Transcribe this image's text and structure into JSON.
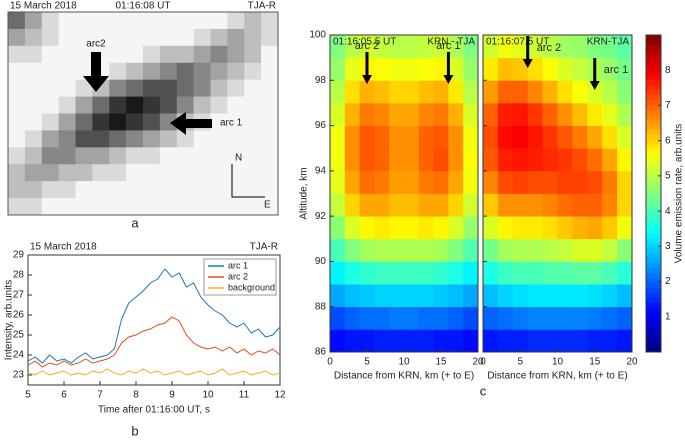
{
  "chart_data": [
    {
      "type": "image",
      "date": "15 March 2018",
      "time": "01:16:08 UT",
      "station": "TJA-R",
      "labels": [
        "arc2",
        "arc 1",
        "N",
        "E"
      ],
      "panel_label": "a",
      "pixels": [
        [
          5,
          3,
          1,
          0,
          0,
          0,
          0,
          0,
          0,
          0,
          0,
          0,
          0,
          1,
          2,
          1
        ],
        [
          3,
          2,
          1,
          0,
          0,
          0,
          0,
          0,
          0,
          0,
          0,
          1,
          2,
          3,
          2,
          1
        ],
        [
          1,
          1,
          0,
          0,
          0,
          0,
          0,
          0,
          1,
          2,
          2,
          3,
          4,
          3,
          2,
          0
        ],
        [
          0,
          0,
          0,
          0,
          0,
          0,
          1,
          2,
          3,
          4,
          5,
          4,
          3,
          2,
          1,
          0
        ],
        [
          0,
          0,
          0,
          0,
          1,
          2,
          4,
          5,
          6,
          6,
          5,
          4,
          2,
          1,
          0,
          0
        ],
        [
          0,
          0,
          0,
          1,
          3,
          5,
          7,
          8,
          7,
          6,
          4,
          2,
          1,
          0,
          0,
          0
        ],
        [
          0,
          0,
          1,
          3,
          5,
          7,
          8,
          7,
          6,
          4,
          2,
          1,
          0,
          0,
          0,
          0
        ],
        [
          0,
          1,
          3,
          4,
          6,
          6,
          5,
          4,
          3,
          2,
          1,
          0,
          0,
          0,
          0,
          0
        ],
        [
          1,
          2,
          4,
          4,
          3,
          3,
          2,
          1,
          1,
          0,
          0,
          0,
          0,
          0,
          0,
          0
        ],
        [
          2,
          3,
          3,
          2,
          2,
          1,
          1,
          0,
          0,
          0,
          0,
          0,
          0,
          0,
          0,
          0
        ],
        [
          2,
          2,
          1,
          1,
          0,
          0,
          0,
          0,
          0,
          0,
          0,
          0,
          0,
          0,
          0,
          0
        ],
        [
          1,
          1,
          0,
          0,
          0,
          0,
          0,
          0,
          0,
          0,
          0,
          0,
          0,
          0,
          0,
          0
        ]
      ]
    },
    {
      "type": "line",
      "date": "15 March 2018",
      "station": "TJA-R",
      "xlabel": "Time after 01:16:00 UT, s",
      "ylabel": "Intensity, arb.units",
      "panel_label": "b",
      "xlim": [
        5,
        12
      ],
      "xticks": [
        5,
        6,
        7,
        8,
        9,
        10,
        11,
        12
      ],
      "ylim": [
        22.5,
        29
      ],
      "yticks": [
        23,
        24,
        25,
        26,
        27,
        28,
        29
      ],
      "legend": "upper right",
      "x": [
        5.0,
        5.2,
        5.4,
        5.6,
        5.8,
        6.0,
        6.2,
        6.4,
        6.6,
        6.8,
        7.0,
        7.2,
        7.4,
        7.6,
        7.8,
        8.0,
        8.2,
        8.4,
        8.6,
        8.8,
        9.0,
        9.2,
        9.4,
        9.6,
        9.8,
        10.0,
        10.2,
        10.4,
        10.6,
        10.8,
        11.0,
        11.2,
        11.4,
        11.6,
        11.8,
        12.0
      ],
      "series": [
        {
          "name": "arc 1",
          "color": "#1f77b4",
          "values": [
            23.7,
            23.9,
            23.6,
            24.0,
            23.7,
            23.8,
            23.6,
            23.9,
            24.1,
            23.8,
            23.9,
            24.0,
            24.3,
            25.8,
            26.6,
            26.9,
            27.2,
            27.6,
            27.8,
            28.3,
            27.9,
            28.1,
            27.4,
            27.6,
            26.9,
            26.5,
            26.2,
            26.0,
            25.6,
            25.4,
            25.6,
            25.1,
            25.3,
            24.9,
            25.0,
            25.4
          ]
        },
        {
          "name": "arc 2",
          "color": "#d95319",
          "values": [
            23.5,
            23.7,
            23.4,
            23.6,
            23.5,
            23.7,
            23.5,
            23.6,
            23.8,
            23.6,
            23.7,
            23.8,
            24.0,
            24.6,
            24.9,
            25.0,
            25.2,
            25.3,
            25.5,
            25.6,
            25.9,
            25.7,
            25.0,
            24.6,
            24.4,
            24.3,
            24.4,
            24.2,
            24.4,
            24.1,
            24.3,
            24.0,
            24.2,
            24.1,
            24.3,
            24.0
          ]
        },
        {
          "name": "background",
          "color": "#edb120",
          "values": [
            23.1,
            23.0,
            23.2,
            23.0,
            23.1,
            23.2,
            23.0,
            23.1,
            23.0,
            23.2,
            23.1,
            23.3,
            23.1,
            23.0,
            23.2,
            23.1,
            23.3,
            23.1,
            23.2,
            23.0,
            23.1,
            23.2,
            23.0,
            23.1,
            23.2,
            23.0,
            23.1,
            23.3,
            23.0,
            23.1,
            23.2,
            23.0,
            23.1,
            23.2,
            23.0,
            23.1
          ]
        }
      ]
    },
    {
      "type": "heatmap",
      "ylabel": "Altitude, km",
      "panel_label": "c",
      "xlim": [
        0,
        20
      ],
      "xticks": [
        0,
        5,
        10,
        15,
        20
      ],
      "ylim": [
        86,
        100
      ],
      "yticks": [
        86,
        88,
        90,
        92,
        94,
        96,
        98,
        100
      ],
      "x_edges": [
        0,
        2,
        4,
        6,
        8,
        10,
        12,
        14,
        16,
        18,
        20
      ],
      "y_edges": [
        86,
        87,
        88,
        89,
        90,
        91,
        92,
        93,
        94,
        95,
        96,
        97,
        98,
        99,
        100
      ],
      "colorbar": {
        "label": "Volume emission rate, arb.units",
        "lim": [
          0,
          9
        ],
        "ticks": [
          1,
          2,
          3,
          4,
          5,
          6,
          7,
          8
        ],
        "colormap": "jet"
      },
      "panels": [
        {
          "time": "01:16:05.5 UT",
          "station": "KRN - TJA",
          "xlabel": "Distance from KRN, km (+ to E)",
          "arrows": [
            {
              "label": "arc 2",
              "x": 5
            },
            {
              "label": "arc 1",
              "x": 16
            }
          ],
          "values": [
            [
              1.2,
              1.3,
              1.3,
              1.4,
              1.4,
              1.4,
              1.4,
              1.3,
              1.3,
              1.2
            ],
            [
              1.8,
              2.0,
              2.1,
              2.1,
              2.2,
              2.2,
              2.1,
              2.1,
              2.0,
              1.8
            ],
            [
              2.6,
              2.8,
              2.9,
              3.0,
              3.0,
              3.0,
              3.0,
              2.9,
              2.8,
              2.6
            ],
            [
              3.3,
              3.6,
              3.8,
              3.9,
              3.9,
              3.9,
              3.9,
              3.8,
              3.6,
              3.3
            ],
            [
              4.0,
              4.5,
              4.8,
              4.9,
              4.9,
              4.9,
              4.9,
              4.8,
              4.5,
              4.1
            ],
            [
              4.6,
              5.3,
              5.7,
              5.8,
              5.7,
              5.7,
              5.8,
              5.7,
              5.3,
              4.7
            ],
            [
              5.1,
              6.0,
              6.4,
              6.4,
              6.2,
              6.2,
              6.4,
              6.4,
              6.0,
              5.2
            ],
            [
              5.4,
              6.4,
              6.9,
              6.8,
              6.5,
              6.5,
              6.8,
              6.9,
              6.4,
              5.5
            ],
            [
              5.5,
              6.6,
              7.1,
              7.0,
              6.6,
              6.6,
              7.0,
              7.2,
              6.6,
              5.6
            ],
            [
              5.5,
              6.6,
              7.1,
              7.0,
              6.6,
              6.6,
              7.0,
              7.1,
              6.6,
              5.5
            ],
            [
              5.3,
              6.3,
              6.8,
              6.7,
              6.4,
              6.4,
              6.7,
              6.8,
              6.3,
              5.3
            ],
            [
              5.0,
              5.9,
              6.3,
              6.2,
              6.0,
              6.0,
              6.2,
              6.3,
              5.8,
              5.0
            ],
            [
              4.7,
              5.4,
              5.7,
              5.6,
              5.5,
              5.5,
              5.6,
              5.7,
              5.3,
              4.7
            ],
            [
              4.5,
              5.0,
              5.2,
              5.1,
              5.0,
              5.0,
              5.1,
              5.2,
              4.9,
              4.5
            ]
          ]
        },
        {
          "time": "01:16:07.5 UT",
          "station": "KRN-TJA",
          "xlabel": "Distance from KRN, km (+ to E)",
          "arrows": [
            {
              "label": "arc 2",
              "x": 6
            },
            {
              "label": "arc 1",
              "x": 15
            }
          ],
          "values": [
            [
              1.3,
              1.4,
              1.4,
              1.5,
              1.5,
              1.5,
              1.5,
              1.4,
              1.4,
              1.3
            ],
            [
              2.0,
              2.1,
              2.2,
              2.3,
              2.3,
              2.3,
              2.3,
              2.2,
              2.1,
              2.0
            ],
            [
              2.8,
              3.0,
              3.1,
              3.2,
              3.2,
              3.2,
              3.2,
              3.1,
              3.0,
              2.8
            ],
            [
              3.6,
              3.9,
              4.0,
              4.0,
              4.1,
              4.1,
              4.2,
              4.2,
              4.0,
              3.7
            ],
            [
              4.4,
              4.8,
              4.9,
              4.9,
              5.0,
              5.1,
              5.3,
              5.3,
              5.1,
              4.6
            ],
            [
              5.3,
              5.7,
              5.8,
              5.8,
              5.9,
              6.1,
              6.3,
              6.4,
              6.1,
              5.5
            ],
            [
              6.1,
              6.6,
              6.6,
              6.6,
              6.7,
              6.9,
              7.0,
              7.0,
              6.7,
              6.0
            ],
            [
              6.7,
              7.2,
              7.3,
              7.2,
              7.2,
              7.3,
              7.3,
              7.2,
              6.8,
              6.0
            ],
            [
              7.1,
              7.6,
              7.7,
              7.6,
              7.5,
              7.4,
              7.2,
              6.9,
              6.4,
              5.7
            ],
            [
              7.2,
              7.8,
              7.9,
              7.7,
              7.4,
              7.1,
              6.8,
              6.4,
              5.9,
              5.3
            ],
            [
              7.0,
              7.6,
              7.7,
              7.4,
              7.0,
              6.6,
              6.2,
              5.8,
              5.4,
              4.9
            ],
            [
              6.5,
              7.0,
              7.0,
              6.7,
              6.3,
              5.9,
              5.6,
              5.3,
              5.0,
              4.6
            ],
            [
              5.8,
              6.2,
              6.1,
              5.9,
              5.6,
              5.3,
              5.1,
              4.9,
              4.7,
              4.4
            ],
            [
              5.2,
              5.5,
              5.4,
              5.2,
              5.0,
              4.8,
              4.7,
              4.5,
              4.4,
              4.2
            ]
          ]
        }
      ]
    }
  ]
}
